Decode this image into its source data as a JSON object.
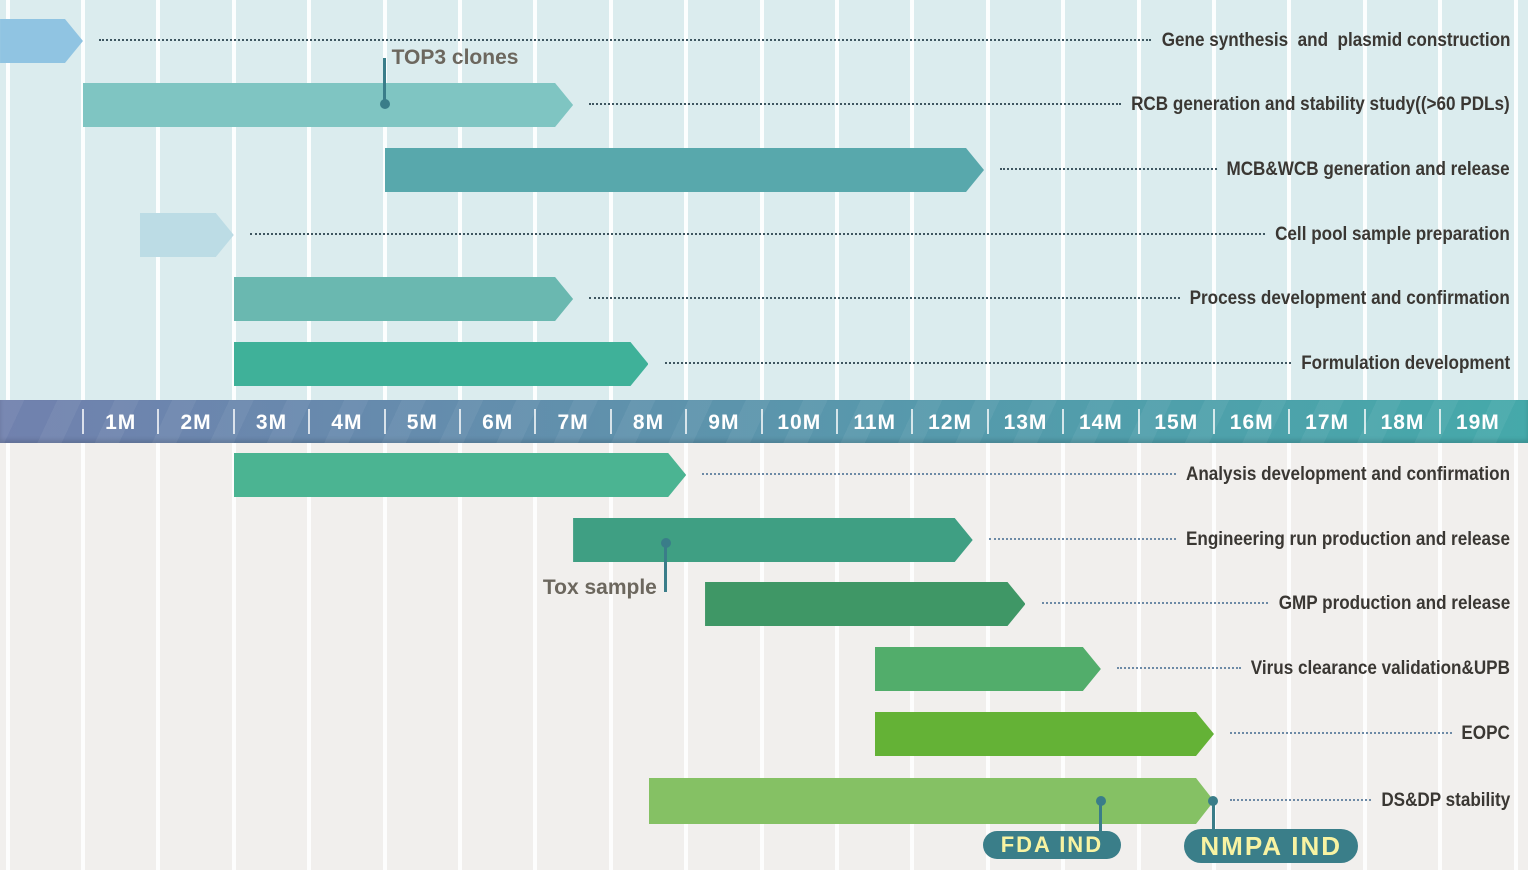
{
  "chart_data": {
    "type": "bar",
    "variant": "gantt-timeline",
    "title": "",
    "axis": {
      "unit": "months",
      "tick_labels": [
        "1M",
        "2M",
        "3M",
        "4M",
        "5M",
        "6M",
        "7M",
        "8M",
        "9M",
        "10M",
        "11M",
        "12M",
        "13M",
        "14M",
        "15M",
        "16M",
        "17M",
        "18M",
        "19M"
      ],
      "range_months": [
        0,
        20
      ],
      "grid": true
    },
    "sections": {
      "top_row_count": 6,
      "bottom_row_count": 6
    },
    "tasks": [
      {
        "label": "Gene synthesis  and  plasmid construction",
        "start_month": -0.1,
        "end_month": 1.0,
        "color": "#90c4e2",
        "section": "top"
      },
      {
        "label": "RCB generation and stability study((>60 PDLs)",
        "start_month": 1.0,
        "end_month": 7.5,
        "color": "#7fc5c2",
        "section": "top"
      },
      {
        "label": "MCB&WCB generation and release",
        "start_month": 5.0,
        "end_month": 12.95,
        "color": "#58a8ac",
        "section": "top"
      },
      {
        "label": "Cell pool sample preparation",
        "start_month": 1.75,
        "end_month": 3.0,
        "color": "#bcdce5",
        "section": "top"
      },
      {
        "label": "Process development and confirmation",
        "start_month": 3.0,
        "end_month": 7.5,
        "color": "#6ab8b0",
        "section": "top"
      },
      {
        "label": "Formulation development",
        "start_month": 3.0,
        "end_month": 8.5,
        "color": "#3fb199",
        "section": "top"
      },
      {
        "label": "Analysis development and confirmation",
        "start_month": 3.0,
        "end_month": 9.0,
        "color": "#4bb492",
        "section": "bottom"
      },
      {
        "label": "Engineering run production and release",
        "start_month": 7.5,
        "end_month": 12.8,
        "color": "#3f9f83",
        "section": "bottom"
      },
      {
        "label": "GMP production and release",
        "start_month": 9.25,
        "end_month": 13.5,
        "color": "#3f9766",
        "section": "bottom"
      },
      {
        "label": "Virus clearance validation&UPB",
        "start_month": 11.5,
        "end_month": 14.5,
        "color": "#52ad6b",
        "section": "bottom"
      },
      {
        "label": "EOPC",
        "start_month": 11.5,
        "end_month": 16.0,
        "color": "#64b236",
        "section": "bottom"
      },
      {
        "label": "DS&DP stability",
        "start_month": 8.5,
        "end_month": 16.0,
        "color": "#85c164",
        "section": "bottom"
      }
    ],
    "annotations": [
      {
        "id": "top3",
        "label": "TOP3 clones",
        "month": 5.0,
        "task": "RCB generation and stability study((>60 PDLs)",
        "row": 1,
        "kind": "text"
      },
      {
        "id": "tox",
        "label": "Tox sample",
        "month": 8.73,
        "task": "Engineering run production and release",
        "row": 7,
        "kind": "text"
      },
      {
        "id": "fda",
        "label": "FDA IND",
        "month": 14.5,
        "task": "DS&DP stability",
        "row": 11,
        "kind": "badge"
      },
      {
        "id": "nmpa",
        "label": "NMPA IND",
        "month": 15.99,
        "task": "DS&DP stability",
        "row": 11,
        "kind": "badge"
      }
    ],
    "style": {
      "top_background": "#dbecee",
      "bottom_background": "#f1efed",
      "gridline_color": "#ffffff",
      "axis_gradient_left": "#7181ae",
      "axis_gradient_right": "#45a9aa",
      "axis_text_color": "#ffffff",
      "axis_tick_color": "#ffffff",
      "task_label_color": "#3a3733",
      "top_leader_color": "#3e5660",
      "bottom_leader_color": "#6d8aa6",
      "marker_color": "#3a7d89",
      "badge_background": "#3a7e89",
      "badge_text_color": "#f8f3a2",
      "annotation_text_color": "#6c675e"
    }
  }
}
